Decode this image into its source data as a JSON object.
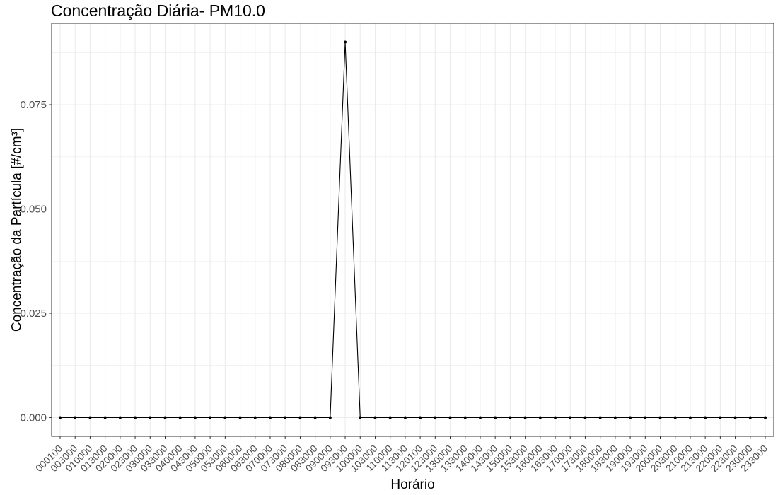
{
  "chart_data": {
    "type": "line",
    "title": "Concentração Diária- PM10.0",
    "xlabel": "Horário",
    "ylabel": "Concentração da Partícula [#/cm³]",
    "categories": [
      "000100",
      "003000",
      "010000",
      "013000",
      "020000",
      "023000",
      "030000",
      "033000",
      "040000",
      "043000",
      "050000",
      "053000",
      "060000",
      "063000",
      "070000",
      "073000",
      "080000",
      "083000",
      "090000",
      "093000",
      "100000",
      "103000",
      "110000",
      "113000",
      "120100",
      "123000",
      "130000",
      "133000",
      "140000",
      "143000",
      "150000",
      "153000",
      "160000",
      "163000",
      "170000",
      "173000",
      "180000",
      "183000",
      "190000",
      "193000",
      "200000",
      "203000",
      "210000",
      "213000",
      "220000",
      "223000",
      "230000",
      "233000"
    ],
    "values": [
      0,
      0,
      0,
      0,
      0,
      0,
      0,
      0,
      0,
      0,
      0,
      0,
      0,
      0,
      0,
      0,
      0,
      0,
      0,
      0.09,
      0,
      0,
      0,
      0,
      0,
      0,
      0,
      0,
      0,
      0,
      0,
      0,
      0,
      0,
      0,
      0,
      0,
      0,
      0,
      0,
      0,
      0,
      0,
      0,
      0,
      0,
      0,
      0
    ],
    "yticks": [
      0.0,
      0.025,
      0.05,
      0.075
    ],
    "ytick_labels": [
      "0.000",
      "0.025",
      "0.050",
      "0.075"
    ],
    "ylim": [
      -0.0045,
      0.0945
    ],
    "grid": true,
    "legend": "none",
    "line_color": "#000000",
    "grid_color": "#ebebeb"
  }
}
